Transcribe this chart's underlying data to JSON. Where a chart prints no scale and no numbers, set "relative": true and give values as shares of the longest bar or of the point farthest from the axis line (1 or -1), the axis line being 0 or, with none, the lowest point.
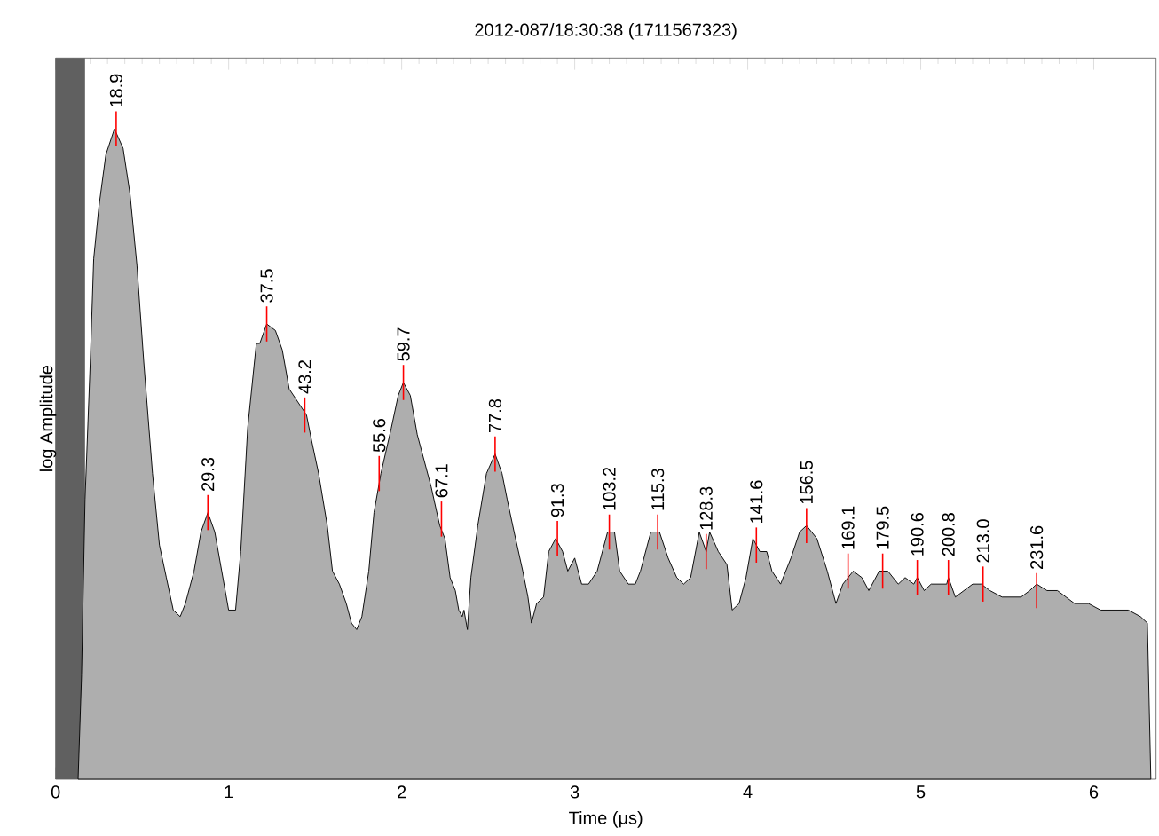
{
  "chart_data": {
    "type": "area",
    "title": "2012-087/18:30:38 (1711567323)",
    "xlabel": "Time (μs)",
    "ylabel": "log Amplitude",
    "relative": true,
    "tick_labels": "x",
    "xlim": [
      0,
      6.36
    ],
    "xticks": [
      0,
      1,
      2,
      3,
      4,
      5,
      6
    ],
    "bands": [
      {
        "axis": "x",
        "from": 0,
        "to": 0.17,
        "color": "#606060"
      }
    ],
    "series": [
      {
        "color": "#aeaeae",
        "x": [
          0.13,
          0.15,
          0.17,
          0.2,
          0.22,
          0.25,
          0.29,
          0.34,
          0.39,
          0.43,
          0.47,
          0.51,
          0.56,
          0.6,
          0.64,
          0.68,
          0.72,
          0.75,
          0.8,
          0.84,
          0.88,
          0.92,
          0.96,
          1.0,
          1.04,
          1.07,
          1.11,
          1.16,
          1.18,
          1.22,
          1.27,
          1.31,
          1.35,
          1.4,
          1.45,
          1.48,
          1.52,
          1.57,
          1.6,
          1.64,
          1.68,
          1.71,
          1.74,
          1.77,
          1.81,
          1.84,
          1.88,
          1.94,
          1.98,
          2.01,
          2.05,
          2.09,
          2.13,
          2.17,
          2.22,
          2.25,
          2.28,
          2.31,
          2.33,
          2.35,
          2.36,
          2.38,
          2.4,
          2.44,
          2.49,
          2.54,
          2.58,
          2.61,
          2.65,
          2.7,
          2.73,
          2.75,
          2.78,
          2.82,
          2.85,
          2.89,
          2.93,
          2.96,
          3.0,
          3.04,
          3.08,
          3.13,
          3.19,
          3.23,
          3.26,
          3.31,
          3.35,
          3.38,
          3.44,
          3.49,
          3.54,
          3.59,
          3.63,
          3.67,
          3.72,
          3.76,
          3.78,
          3.83,
          3.88,
          3.91,
          3.95,
          3.99,
          4.03,
          4.07,
          4.11,
          4.14,
          4.19,
          4.25,
          4.3,
          4.34,
          4.4,
          4.46,
          4.51,
          4.55,
          4.61,
          4.66,
          4.7,
          4.76,
          4.81,
          4.87,
          4.91,
          4.96,
          4.98,
          5.02,
          5.06,
          5.11,
          5.15,
          5.16,
          5.2,
          5.25,
          5.3,
          5.35,
          5.4,
          5.47,
          5.53,
          5.58,
          5.63,
          5.67,
          5.73,
          5.79,
          5.84,
          5.89,
          5.97,
          6.04,
          6.12,
          6.2,
          6.27,
          6.31,
          6.33
        ],
        "values": [
          0,
          0.16,
          0.43,
          0.64,
          0.8,
          0.88,
          0.96,
          1.0,
          0.97,
          0.9,
          0.79,
          0.64,
          0.47,
          0.36,
          0.31,
          0.26,
          0.25,
          0.27,
          0.32,
          0.38,
          0.41,
          0.38,
          0.32,
          0.26,
          0.26,
          0.35,
          0.54,
          0.67,
          0.67,
          0.7,
          0.69,
          0.66,
          0.6,
          0.58,
          0.56,
          0.52,
          0.47,
          0.39,
          0.32,
          0.3,
          0.27,
          0.24,
          0.23,
          0.25,
          0.32,
          0.41,
          0.47,
          0.54,
          0.59,
          0.61,
          0.59,
          0.53,
          0.49,
          0.45,
          0.39,
          0.37,
          0.31,
          0.29,
          0.26,
          0.25,
          0.26,
          0.23,
          0.31,
          0.39,
          0.47,
          0.5,
          0.47,
          0.43,
          0.38,
          0.32,
          0.28,
          0.24,
          0.27,
          0.28,
          0.35,
          0.37,
          0.35,
          0.32,
          0.34,
          0.3,
          0.3,
          0.32,
          0.38,
          0.38,
          0.32,
          0.3,
          0.3,
          0.32,
          0.38,
          0.38,
          0.34,
          0.31,
          0.3,
          0.31,
          0.38,
          0.35,
          0.38,
          0.35,
          0.33,
          0.26,
          0.27,
          0.31,
          0.37,
          0.35,
          0.35,
          0.32,
          0.3,
          0.34,
          0.38,
          0.39,
          0.37,
          0.32,
          0.27,
          0.3,
          0.32,
          0.31,
          0.29,
          0.32,
          0.32,
          0.3,
          0.31,
          0.3,
          0.31,
          0.29,
          0.3,
          0.3,
          0.3,
          0.31,
          0.28,
          0.29,
          0.3,
          0.3,
          0.29,
          0.28,
          0.28,
          0.28,
          0.29,
          0.3,
          0.29,
          0.29,
          0.28,
          0.27,
          0.27,
          0.26,
          0.26,
          0.26,
          0.25,
          0.24,
          0
        ]
      }
    ],
    "annotations": [
      {
        "text": "18.9",
        "x": 0.35,
        "y": 1.0
      },
      {
        "text": "29.3",
        "x": 0.88,
        "y": 0.41
      },
      {
        "text": "37.5",
        "x": 1.22,
        "y": 0.7
      },
      {
        "text": "43.2",
        "x": 1.44,
        "y": 0.56
      },
      {
        "text": "55.6",
        "x": 1.87,
        "y": 0.47
      },
      {
        "text": "59.7",
        "x": 2.01,
        "y": 0.61
      },
      {
        "text": "67.1",
        "x": 2.23,
        "y": 0.4
      },
      {
        "text": "77.8",
        "x": 2.54,
        "y": 0.5
      },
      {
        "text": "91.3",
        "x": 2.9,
        "y": 0.37
      },
      {
        "text": "103.2",
        "x": 3.2,
        "y": 0.38
      },
      {
        "text": "115.3",
        "x": 3.48,
        "y": 0.38
      },
      {
        "text": "128.3",
        "x": 3.76,
        "y": 0.35
      },
      {
        "text": "141.6",
        "x": 4.05,
        "y": 0.36
      },
      {
        "text": "156.5",
        "x": 4.34,
        "y": 0.39
      },
      {
        "text": "169.1",
        "x": 4.58,
        "y": 0.32
      },
      {
        "text": "179.5",
        "x": 4.78,
        "y": 0.32
      },
      {
        "text": "190.6",
        "x": 4.98,
        "y": 0.31
      },
      {
        "text": "200.8",
        "x": 5.16,
        "y": 0.31
      },
      {
        "text": "213.0",
        "x": 5.36,
        "y": 0.3
      },
      {
        "text": "231.6",
        "x": 5.67,
        "y": 0.29
      }
    ]
  }
}
